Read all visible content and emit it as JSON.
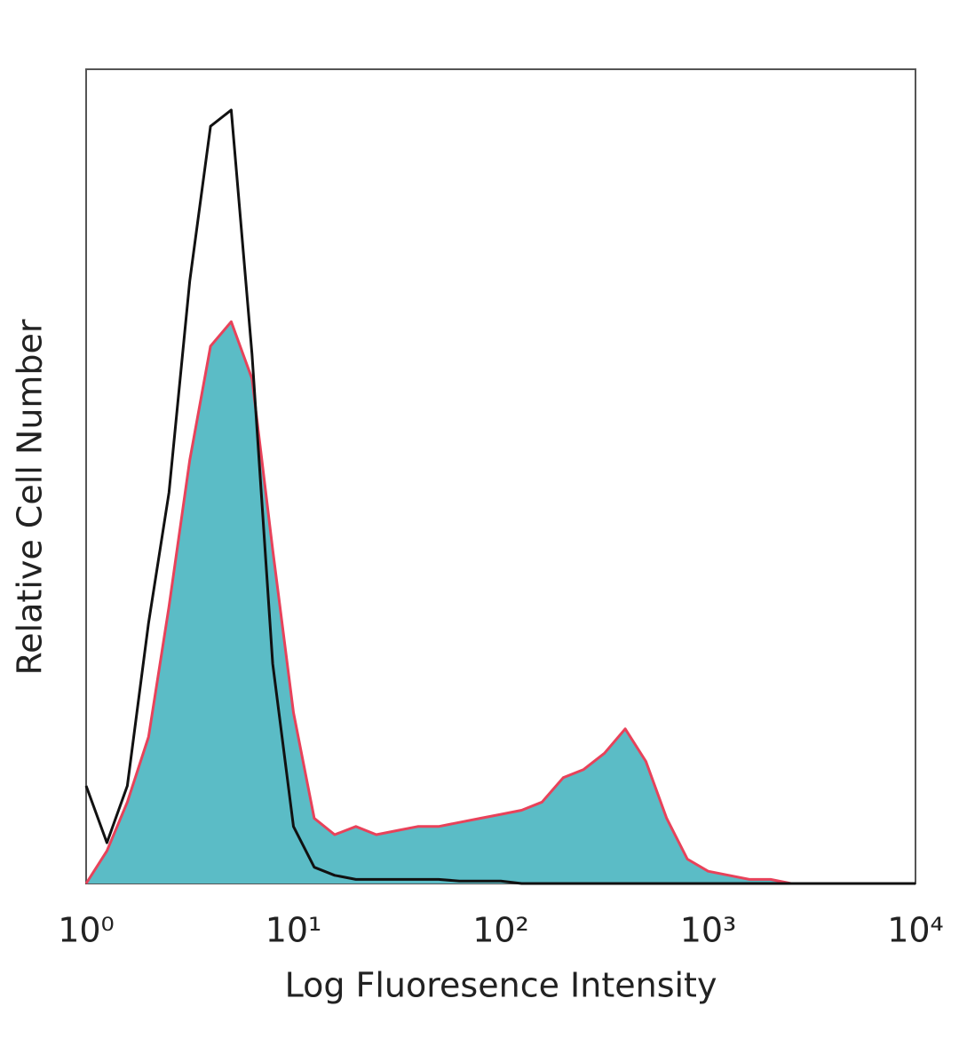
{
  "chart_data": {
    "type": "histogram-overlay",
    "x_label": "Log Fluoresence Intensity",
    "y_label": "Relative Cell Number",
    "xscale": "log",
    "xlim": [
      1,
      10000
    ],
    "ylim": [
      0,
      100
    ],
    "xticks": [
      {
        "value": 1,
        "label": "10⁰"
      },
      {
        "value": 10,
        "label": "10¹"
      },
      {
        "value": 100,
        "label": "10²"
      },
      {
        "value": 1000,
        "label": "10³"
      },
      {
        "value": 10000,
        "label": "10⁴"
      }
    ],
    "grid": false,
    "x": [
      1,
      1.26,
      1.58,
      2,
      2.51,
      3.16,
      3.98,
      5.01,
      6.31,
      7.94,
      10,
      12.6,
      15.8,
      20,
      25.1,
      31.6,
      39.8,
      50.1,
      63.1,
      79.4,
      100,
      126,
      158,
      200,
      251,
      316,
      398,
      501,
      631,
      794,
      1000,
      1260,
      1580,
      2000,
      2510,
      3160,
      3980,
      5010,
      6310,
      7940,
      10000
    ],
    "series": [
      {
        "color": "#e8425a",
        "fill": "#5bbcc6",
        "values": [
          0,
          4,
          10,
          18,
          34,
          52,
          66,
          69,
          62,
          41,
          21,
          8,
          6,
          7,
          6,
          6.5,
          7,
          7,
          7.5,
          8,
          8.5,
          9,
          10,
          13,
          14,
          16,
          19,
          15,
          8,
          3,
          1.5,
          1,
          0.5,
          0.5,
          0,
          0,
          0,
          0,
          0,
          0,
          0
        ]
      },
      {
        "color": "#111111",
        "values": [
          12,
          5,
          12,
          32,
          48,
          74,
          93,
          95,
          65,
          27,
          7,
          2,
          1,
          0.5,
          0.5,
          0.5,
          0.5,
          0.5,
          0.3,
          0.3,
          0.3,
          0,
          0,
          0,
          0,
          0,
          0,
          0,
          0,
          0,
          0,
          0,
          0,
          0,
          0,
          0,
          0,
          0,
          0,
          0,
          0
        ]
      }
    ]
  }
}
